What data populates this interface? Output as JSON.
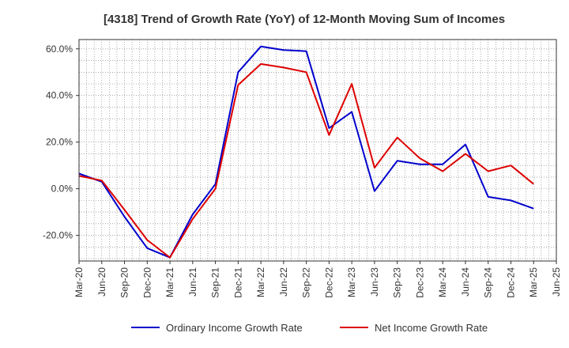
{
  "chart_data": {
    "type": "line",
    "title": "[4318]  Trend of Growth Rate (YoY) of 12-Month Moving Sum of Incomes",
    "xlabel": "",
    "ylabel": "",
    "x_ticks": [
      "Mar-20",
      "Jun-20",
      "Sep-20",
      "Dec-20",
      "Mar-21",
      "Jun-21",
      "Sep-21",
      "Dec-21",
      "Mar-22",
      "Jun-22",
      "Sep-22",
      "Dec-22",
      "Mar-23",
      "Jun-23",
      "Sep-23",
      "Dec-23",
      "Mar-24",
      "Jun-24",
      "Sep-24",
      "Dec-24",
      "Mar-25",
      "Jun-25"
    ],
    "y_ticks": [
      "60.0%",
      "40.0%",
      "20.0%",
      "0.0%",
      "-20.0%"
    ],
    "y_tick_values": [
      60,
      40,
      20,
      0,
      -20
    ],
    "ylim": [
      -31,
      64
    ],
    "grid": true,
    "legend_position": "bottom",
    "series": [
      {
        "name": "Ordinary Income Growth Rate",
        "color": "#0000cc",
        "values": [
          6.5,
          3.0,
          -12.0,
          -25.5,
          -29.5,
          -11.0,
          2.0,
          50.0,
          61.0,
          59.5,
          59.0,
          26.0,
          33.0,
          -1.0,
          12.0,
          10.5,
          10.5,
          19.0,
          -3.5,
          -5.0,
          -8.5
        ]
      },
      {
        "name": "Net Income Growth Rate",
        "color": "#dd0000",
        "values": [
          5.5,
          3.5,
          -9.0,
          -22.0,
          -29.5,
          -13.0,
          0.0,
          44.5,
          53.5,
          52.0,
          50.0,
          23.0,
          45.0,
          9.0,
          22.0,
          13.0,
          7.5,
          15.0,
          7.5,
          10.0,
          2.0
        ]
      }
    ]
  }
}
